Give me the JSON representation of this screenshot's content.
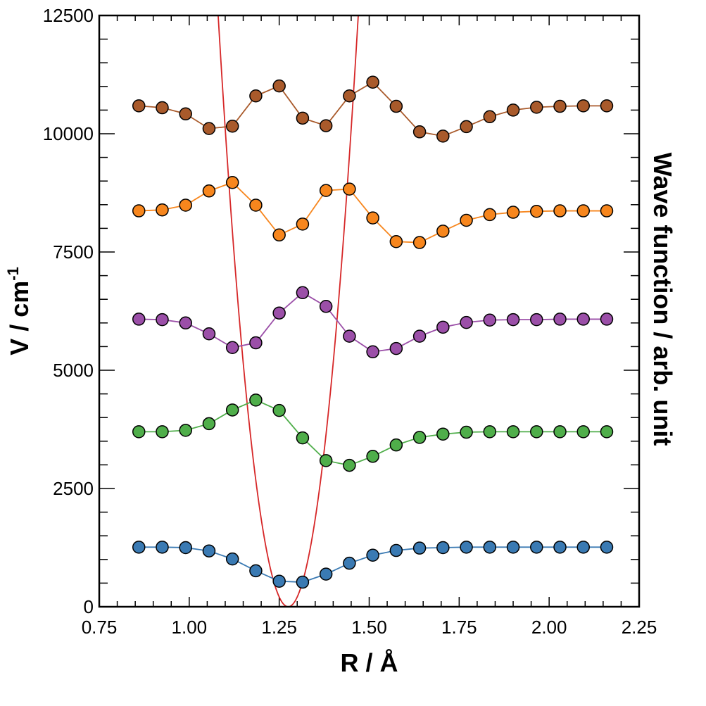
{
  "chart_data": {
    "type": "line",
    "xlabel": "R / Å",
    "ylabel_main": "V / cm",
    "ylabel_sup": "-1",
    "y2label": "Wave function / arb. unit",
    "xlim": [
      0.75,
      2.25
    ],
    "ylim": [
      0,
      12500
    ],
    "xticks": [
      "0.75",
      "1.00",
      "1.25",
      "1.50",
      "1.75",
      "2.00",
      "2.25"
    ],
    "yticks": [
      "0",
      "2500",
      "5000",
      "7500",
      "10000",
      "12500"
    ],
    "grid": false,
    "potential": {
      "type": "harmonic",
      "r0": 1.275,
      "k": 330000,
      "color": "#d62728",
      "label": ""
    },
    "x": [
      0.86,
      0.925,
      0.99,
      1.055,
      1.12,
      1.185,
      1.25,
      1.315,
      1.38,
      1.445,
      1.51,
      1.575,
      1.64,
      1.705,
      1.77,
      1.835,
      1.9,
      1.965,
      2.03,
      2.095,
      2.16
    ],
    "series": [
      {
        "color": "#3a7ab3",
        "values": [
          1260,
          1260,
          1250,
          1180,
          1010,
          760,
          540,
          520,
          690,
          920,
          1090,
          1190,
          1240,
          1250,
          1260,
          1260,
          1260,
          1260,
          1260,
          1260,
          1260
        ]
      },
      {
        "color": "#4fae4a",
        "values": [
          3700,
          3700,
          3730,
          3870,
          4160,
          4370,
          4150,
          3570,
          3090,
          2990,
          3180,
          3420,
          3580,
          3650,
          3690,
          3700,
          3700,
          3700,
          3700,
          3700,
          3700
        ]
      },
      {
        "color": "#9b4fa8",
        "values": [
          6080,
          6070,
          6000,
          5770,
          5480,
          5580,
          6210,
          6640,
          6350,
          5720,
          5390,
          5460,
          5720,
          5910,
          6010,
          6060,
          6070,
          6070,
          6080,
          6080,
          6080
        ]
      },
      {
        "color": "#f7861d",
        "values": [
          8370,
          8390,
          8490,
          8790,
          8970,
          8490,
          7860,
          8090,
          8800,
          8830,
          8220,
          7720,
          7700,
          7940,
          8170,
          8290,
          8340,
          8360,
          8370,
          8370,
          8370
        ]
      },
      {
        "color": "#a95a2b",
        "values": [
          10590,
          10550,
          10420,
          10110,
          10160,
          10800,
          11010,
          10330,
          10170,
          10800,
          11090,
          10580,
          10040,
          9950,
          10150,
          10360,
          10500,
          10560,
          10580,
          10590,
          10590
        ]
      }
    ]
  }
}
